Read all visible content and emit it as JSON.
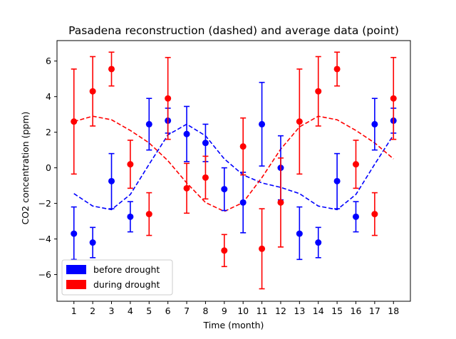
{
  "chart_data": {
    "type": "scatter",
    "title": "Pasadena reconstruction (dashed) and average data (point)",
    "xlabel": "Time (month)",
    "ylabel": "CO2 concentration (ppm)",
    "xlim": [
      0.1,
      18.9
    ],
    "ylim": [
      -7.5,
      7.15
    ],
    "x_ticks": [
      1,
      2,
      3,
      4,
      5,
      6,
      7,
      8,
      9,
      10,
      11,
      12,
      13,
      14,
      15,
      16,
      17,
      18
    ],
    "y_ticks": [
      -6,
      -4,
      -2,
      0,
      2,
      4,
      6
    ],
    "grid": false,
    "legend_position": "lower-left",
    "series": [
      {
        "name": "before drought",
        "color": "#0000ff",
        "style": "points-with-errorbars",
        "points": [
          {
            "x": 1,
            "y": -3.7,
            "err_lo": 1.45,
            "err_hi": 1.5
          },
          {
            "x": 2,
            "y": -4.2,
            "err_lo": 0.85,
            "err_hi": 0.85
          },
          {
            "x": 3,
            "y": -0.75,
            "err_lo": 1.55,
            "err_hi": 1.55
          },
          {
            "x": 4,
            "y": -2.75,
            "err_lo": 0.85,
            "err_hi": 0.85
          },
          {
            "x": 5,
            "y": 2.45,
            "err_lo": 1.45,
            "err_hi": 1.45
          },
          {
            "x": 6,
            "y": 2.65,
            "err_lo": 0.7,
            "err_hi": 0.7
          },
          {
            "x": 7,
            "y": 1.9,
            "err_lo": 1.55,
            "err_hi": 1.55
          },
          {
            "x": 8,
            "y": 1.4,
            "err_lo": 1.05,
            "err_hi": 1.05
          },
          {
            "x": 9,
            "y": -1.2,
            "err_lo": 1.2,
            "err_hi": 1.2
          },
          {
            "x": 10,
            "y": -1.95,
            "err_lo": 1.7,
            "err_hi": 1.7
          },
          {
            "x": 11,
            "y": 2.45,
            "err_lo": 2.35,
            "err_hi": 2.35
          },
          {
            "x": 12,
            "y": 0.0,
            "err_lo": 1.8,
            "err_hi": 1.8
          },
          {
            "x": 13,
            "y": -3.7,
            "err_lo": 1.45,
            "err_hi": 1.5
          },
          {
            "x": 14,
            "y": -4.2,
            "err_lo": 0.85,
            "err_hi": 0.85
          },
          {
            "x": 15,
            "y": -0.75,
            "err_lo": 1.55,
            "err_hi": 1.55
          },
          {
            "x": 16,
            "y": -2.75,
            "err_lo": 0.85,
            "err_hi": 0.85
          },
          {
            "x": 17,
            "y": 2.45,
            "err_lo": 1.45,
            "err_hi": 1.45
          },
          {
            "x": 18,
            "y": 2.65,
            "err_lo": 0.7,
            "err_hi": 0.7
          }
        ]
      },
      {
        "name": "during drought",
        "color": "#ff0000",
        "style": "points-with-errorbars",
        "points": [
          {
            "x": 1,
            "y": 2.6,
            "err_lo": 2.95,
            "err_hi": 2.95
          },
          {
            "x": 2,
            "y": 4.3,
            "err_lo": 1.95,
            "err_hi": 1.95
          },
          {
            "x": 3,
            "y": 5.55,
            "err_lo": 0.95,
            "err_hi": 0.95
          },
          {
            "x": 4,
            "y": 0.2,
            "err_lo": 1.35,
            "err_hi": 1.35
          },
          {
            "x": 5,
            "y": -2.6,
            "err_lo": 1.2,
            "err_hi": 1.2
          },
          {
            "x": 6,
            "y": 3.9,
            "err_lo": 2.3,
            "err_hi": 2.3
          },
          {
            "x": 7,
            "y": -1.15,
            "err_lo": 1.4,
            "err_hi": 1.4
          },
          {
            "x": 8,
            "y": -0.55,
            "err_lo": 1.2,
            "err_hi": 1.2
          },
          {
            "x": 9,
            "y": -4.65,
            "err_lo": 0.9,
            "err_hi": 0.9
          },
          {
            "x": 10,
            "y": 1.2,
            "err_lo": 1.6,
            "err_hi": 1.6
          },
          {
            "x": 11,
            "y": -4.55,
            "err_lo": 2.25,
            "err_hi": 2.25
          },
          {
            "x": 12,
            "y": -1.95,
            "err_lo": 2.5,
            "err_hi": 2.5
          },
          {
            "x": 13,
            "y": 2.6,
            "err_lo": 2.95,
            "err_hi": 2.95
          },
          {
            "x": 14,
            "y": 4.3,
            "err_lo": 1.95,
            "err_hi": 1.95
          },
          {
            "x": 15,
            "y": 5.55,
            "err_lo": 0.95,
            "err_hi": 0.95
          },
          {
            "x": 16,
            "y": 0.2,
            "err_lo": 1.35,
            "err_hi": 1.35
          },
          {
            "x": 17,
            "y": -2.6,
            "err_lo": 1.2,
            "err_hi": 1.2
          },
          {
            "x": 18,
            "y": 3.9,
            "err_lo": 2.3,
            "err_hi": 2.3
          }
        ]
      },
      {
        "color": "#0000ff",
        "style": "dashed-line",
        "x": [
          1,
          2,
          3,
          4,
          5,
          6,
          7,
          8,
          9,
          10,
          11,
          12,
          13,
          14,
          15,
          16,
          17,
          18
        ],
        "y": [
          -1.45,
          -2.15,
          -2.35,
          -1.5,
          0.2,
          1.85,
          2.45,
          1.8,
          0.5,
          -0.4,
          -0.85,
          -1.1,
          -1.45,
          -2.15,
          -2.35,
          -1.5,
          0.2,
          1.85
        ]
      },
      {
        "color": "#ff0000",
        "style": "dashed-line",
        "x": [
          1,
          2,
          3,
          4,
          5,
          6,
          7,
          8,
          9,
          10,
          11,
          12,
          13,
          14,
          15,
          16,
          17,
          18
        ],
        "y": [
          2.6,
          2.9,
          2.7,
          2.1,
          1.4,
          0.4,
          -0.85,
          -1.95,
          -2.45,
          -1.95,
          -0.55,
          1.05,
          2.3,
          2.9,
          2.7,
          2.1,
          1.4,
          0.5
        ]
      }
    ],
    "legend": [
      {
        "label": "before drought",
        "color": "#0000ff"
      },
      {
        "label": "during drought",
        "color": "#ff0000"
      }
    ]
  }
}
